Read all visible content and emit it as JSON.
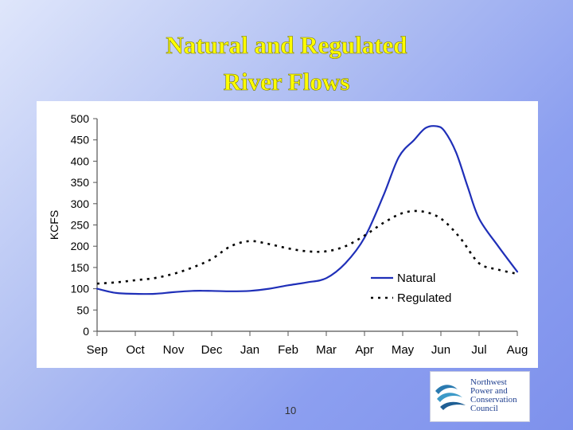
{
  "slide": {
    "title_line1": "Natural and Regulated",
    "title_line2": "River Flows",
    "page_number": "10",
    "title_color": "#ffff00"
  },
  "logo": {
    "line1": "Northwest",
    "line2": "Power and",
    "line3": "Conservation",
    "line4": "Council",
    "icon": "wave-logo-icon"
  },
  "chart_data": {
    "type": "line",
    "title": "",
    "xlabel": "",
    "ylabel": "KCFS",
    "ylim": [
      0,
      500
    ],
    "yticks": [
      0,
      50,
      100,
      150,
      200,
      250,
      300,
      350,
      400,
      450,
      500
    ],
    "categories": [
      "Sep",
      "Oct",
      "Nov",
      "Dec",
      "Jan",
      "Feb",
      "Mar",
      "Apr",
      "May",
      "Jun",
      "Jul",
      "Aug"
    ],
    "series": [
      {
        "name": "Natural",
        "style": "solid",
        "color": "#1f2fb8",
        "x": [
          0,
          0.5,
          1,
          1.5,
          2,
          2.5,
          3,
          3.5,
          4,
          4.5,
          5,
          5.5,
          6,
          6.5,
          7,
          7.5,
          7.9,
          8.3,
          8.6,
          8.9,
          9.1,
          9.4,
          9.7,
          10,
          10.5,
          11
        ],
        "values": [
          100,
          90,
          88,
          88,
          92,
          95,
          95,
          94,
          95,
          100,
          108,
          115,
          125,
          160,
          220,
          320,
          410,
          450,
          478,
          482,
          470,
          420,
          340,
          265,
          200,
          140
        ]
      },
      {
        "name": "Regulated",
        "style": "dotted",
        "color": "#000000",
        "x": [
          0,
          0.5,
          1,
          1.5,
          2,
          2.5,
          3,
          3.5,
          4,
          4.5,
          5,
          5.5,
          6,
          6.5,
          7,
          7.5,
          8,
          8.5,
          9,
          9.5,
          10,
          10.5,
          11
        ],
        "values": [
          112,
          115,
          120,
          125,
          135,
          150,
          170,
          200,
          212,
          205,
          195,
          188,
          188,
          200,
          225,
          255,
          278,
          282,
          265,
          220,
          160,
          145,
          135
        ]
      }
    ],
    "legend": "right-lower",
    "grid": false
  }
}
